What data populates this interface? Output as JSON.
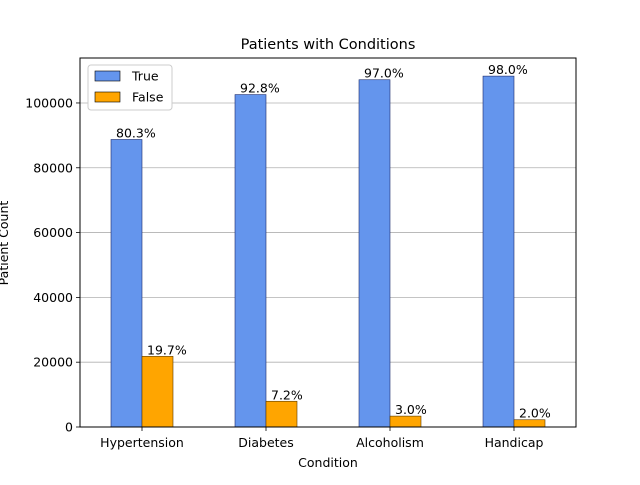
{
  "chart_data": {
    "type": "bar",
    "title": "Patients with Conditions",
    "xlabel": "Condition",
    "ylabel": "Patient Count",
    "categories": [
      "Hypertension",
      "Diabetes",
      "Alcoholism",
      "Handicap"
    ],
    "series": [
      {
        "name": "True",
        "color": "#6495ED",
        "values": [
          88726,
          102584,
          107167,
          108286
        ],
        "labels": [
          "80.3%",
          "92.8%",
          "97.0%",
          "98.0%"
        ]
      },
      {
        "name": "False",
        "color": "#FFA500",
        "values": [
          21801,
          7943,
          3360,
          2241
        ],
        "labels": [
          "19.7%",
          "7.2%",
          "3.0%",
          "2.0%"
        ]
      }
    ],
    "ylim": [
      0,
      113876
    ],
    "yticks": [
      0,
      20000,
      40000,
      60000,
      80000,
      100000
    ],
    "ytick_labels": [
      "0",
      "20000",
      "40000",
      "60000",
      "80000",
      "100000"
    ],
    "grid": "y",
    "legend_position": "top-left"
  }
}
